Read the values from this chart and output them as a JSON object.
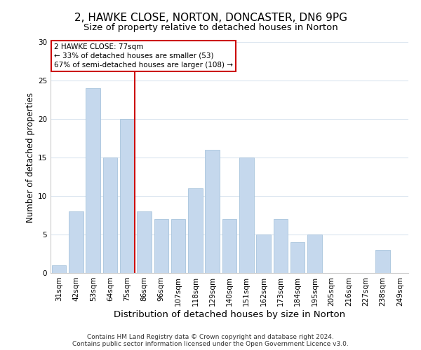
{
  "title": "2, HAWKE CLOSE, NORTON, DONCASTER, DN6 9PG",
  "subtitle": "Size of property relative to detached houses in Norton",
  "xlabel": "Distribution of detached houses by size in Norton",
  "ylabel": "Number of detached properties",
  "bar_labels": [
    "31sqm",
    "42sqm",
    "53sqm",
    "64sqm",
    "75sqm",
    "86sqm",
    "96sqm",
    "107sqm",
    "118sqm",
    "129sqm",
    "140sqm",
    "151sqm",
    "162sqm",
    "173sqm",
    "184sqm",
    "195sqm",
    "205sqm",
    "216sqm",
    "227sqm",
    "238sqm",
    "249sqm"
  ],
  "bar_values": [
    1,
    8,
    24,
    15,
    20,
    8,
    7,
    7,
    11,
    16,
    7,
    15,
    5,
    7,
    4,
    5,
    0,
    0,
    0,
    3,
    0
  ],
  "bar_color": "#c5d8ed",
  "bar_edge_color": "#a8c4dc",
  "vline_color": "#cc0000",
  "ylim": [
    0,
    30
  ],
  "yticks": [
    0,
    5,
    10,
    15,
    20,
    25,
    30
  ],
  "annotation_title": "2 HAWKE CLOSE: 77sqm",
  "annotation_line1": "← 33% of detached houses are smaller (53)",
  "annotation_line2": "67% of semi-detached houses are larger (108) →",
  "annotation_box_color": "#ffffff",
  "annotation_box_edge": "#cc0000",
  "footer1": "Contains HM Land Registry data © Crown copyright and database right 2024.",
  "footer2": "Contains public sector information licensed under the Open Government Licence v3.0.",
  "bg_color": "#ffffff",
  "grid_color": "#dce6f0",
  "title_fontsize": 11,
  "subtitle_fontsize": 9.5,
  "xlabel_fontsize": 9.5,
  "ylabel_fontsize": 8.5,
  "tick_fontsize": 7.5,
  "annotation_fontsize": 7.5,
  "footer_fontsize": 6.5
}
